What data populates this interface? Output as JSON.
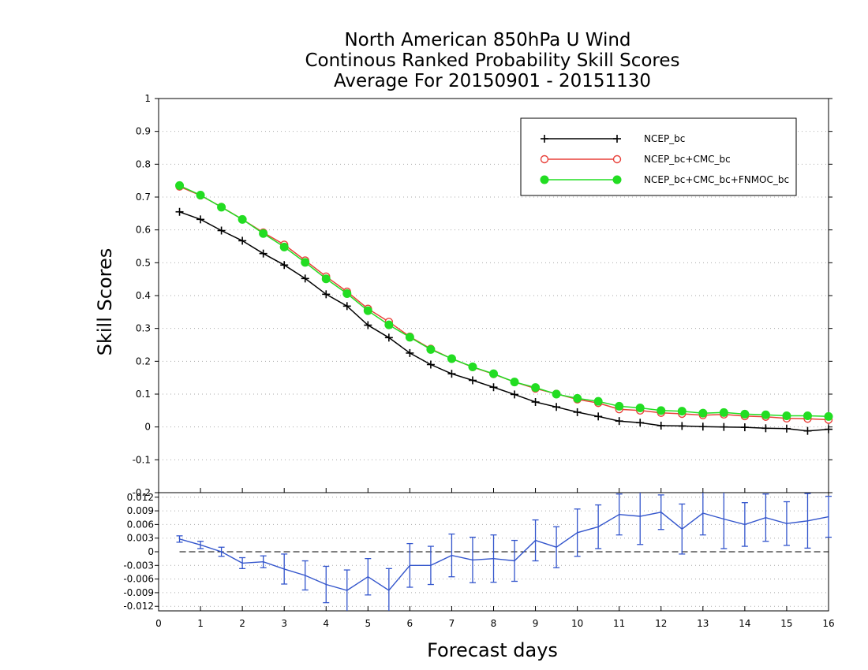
{
  "chart_data": {
    "type": "line",
    "title_lines": [
      "North American 850hPa U Wind",
      "Continous Ranked Probability Skill Scores",
      "Average For 20150901 - 20151130"
    ],
    "xlabel": "Forecast days",
    "ylabel": "Skill Scores",
    "x_ticks": [
      "0",
      "1",
      "2",
      "3",
      "4",
      "5",
      "6",
      "7",
      "8",
      "9",
      "10",
      "11",
      "12",
      "13",
      "14",
      "15",
      "16"
    ],
    "top_panel": {
      "ylim": [
        -0.2,
        1
      ],
      "y_ticks": [
        {
          "v": 1,
          "label": "1"
        },
        {
          "v": 0.9,
          "label": "0.9"
        },
        {
          "v": 0.8,
          "label": "0.8"
        },
        {
          "v": 0.7,
          "label": "0.7"
        },
        {
          "v": 0.6,
          "label": "0.6"
        },
        {
          "v": 0.5,
          "label": "0.5"
        },
        {
          "v": 0.4,
          "label": "0.4"
        },
        {
          "v": 0.3,
          "label": "0.3"
        },
        {
          "v": 0.2,
          "label": "0.2"
        },
        {
          "v": 0.1,
          "label": "0.1"
        },
        {
          "v": 0,
          "label": "0"
        },
        {
          "v": -0.1,
          "label": "-0.1"
        },
        {
          "v": -0.2,
          "label": "-0.2"
        }
      ],
      "grid": "dotted horizontal",
      "legend_position": "top-right",
      "x": [
        0.5,
        1,
        1.5,
        2,
        2.5,
        3,
        3.5,
        4,
        4.5,
        5,
        5.5,
        6,
        6.5,
        7,
        7.5,
        8,
        8.5,
        9,
        9.5,
        10,
        10.5,
        11,
        11.5,
        12,
        12.5,
        13,
        13.5,
        14,
        14.5,
        15,
        15.5,
        16
      ],
      "series": [
        {
          "name": "NCEP_bc",
          "color": "#000000",
          "marker": "plus",
          "values": [
            0.655,
            0.632,
            0.598,
            0.567,
            0.528,
            0.493,
            0.452,
            0.404,
            0.368,
            0.31,
            0.272,
            0.225,
            0.19,
            0.162,
            0.142,
            0.121,
            0.099,
            0.076,
            0.061,
            0.045,
            0.032,
            0.018,
            0.013,
            0.004,
            0.003,
            0.001,
            0,
            -0.001,
            -0.004,
            -0.005,
            -0.012,
            -0.007
          ]
        },
        {
          "name": "NCEP_bc+CMC_bc",
          "color": "#e8413a",
          "marker": "open-circle",
          "values": [
            0.732,
            0.705,
            0.67,
            0.632,
            0.592,
            0.555,
            0.507,
            0.458,
            0.412,
            0.36,
            0.32,
            0.275,
            0.238,
            0.208,
            0.182,
            0.161,
            0.137,
            0.117,
            0.101,
            0.084,
            0.073,
            0.054,
            0.05,
            0.043,
            0.04,
            0.036,
            0.038,
            0.033,
            0.031,
            0.026,
            0.025,
            0.022
          ]
        },
        {
          "name": "NCEP_bc+CMC_bc+FNMOC_bc",
          "color": "#22dd22",
          "marker": "filled-circle",
          "values": [
            0.735,
            0.706,
            0.669,
            0.632,
            0.589,
            0.548,
            0.501,
            0.451,
            0.406,
            0.354,
            0.311,
            0.273,
            0.236,
            0.208,
            0.183,
            0.162,
            0.137,
            0.12,
            0.1,
            0.087,
            0.078,
            0.063,
            0.058,
            0.05,
            0.048,
            0.042,
            0.044,
            0.039,
            0.037,
            0.034,
            0.034,
            0.032
          ]
        }
      ]
    },
    "bottom_panel": {
      "ylim": [
        -0.013,
        0.013
      ],
      "y_ticks": [
        {
          "v": 0.012,
          "label": "0.012"
        },
        {
          "v": 0.009,
          "label": "0.009"
        },
        {
          "v": 0.006,
          "label": "0.006"
        },
        {
          "v": 0.003,
          "label": "0.003"
        },
        {
          "v": 0,
          "label": "0"
        },
        {
          "v": -0.003,
          "label": "-0.003"
        },
        {
          "v": -0.006,
          "label": "-0.006"
        },
        {
          "v": -0.009,
          "label": "-0.009"
        },
        {
          "v": -0.012,
          "label": "-0.012"
        }
      ],
      "zero_line": "dashed",
      "series": {
        "color": "#3355cc",
        "x": [
          0.5,
          1,
          1.5,
          2,
          2.5,
          3,
          3.5,
          4,
          4.5,
          5,
          5.5,
          6,
          6.5,
          7,
          7.5,
          8,
          8.5,
          9,
          9.5,
          10,
          10.5,
          11,
          11.5,
          12,
          12.5,
          13,
          13.5,
          14,
          14.5,
          15,
          15.5,
          16
        ],
        "values": [
          0.0028,
          0.0015,
          0,
          -0.0025,
          -0.0022,
          -0.0038,
          -0.0052,
          -0.0072,
          -0.0085,
          -0.0055,
          -0.0085,
          -0.003,
          -0.003,
          -0.0008,
          -0.0018,
          -0.0015,
          -0.002,
          0.0025,
          0.001,
          0.0042,
          0.0055,
          0.0082,
          0.0078,
          0.0087,
          0.005,
          0.0085,
          0.0072,
          0.006,
          0.0075,
          0.0062,
          0.0068,
          0.0077
        ],
        "errors": [
          0.0007,
          0.0008,
          0.001,
          0.0012,
          0.0013,
          0.0033,
          0.0032,
          0.004,
          0.0045,
          0.004,
          0.0048,
          0.0048,
          0.0042,
          0.0047,
          0.005,
          0.0052,
          0.0045,
          0.0045,
          0.0045,
          0.0052,
          0.0048,
          0.0045,
          0.0062,
          0.0038,
          0.0055,
          0.0048,
          0.0065,
          0.0048,
          0.0052,
          0.0048,
          0.006,
          0.0045
        ]
      }
    }
  }
}
